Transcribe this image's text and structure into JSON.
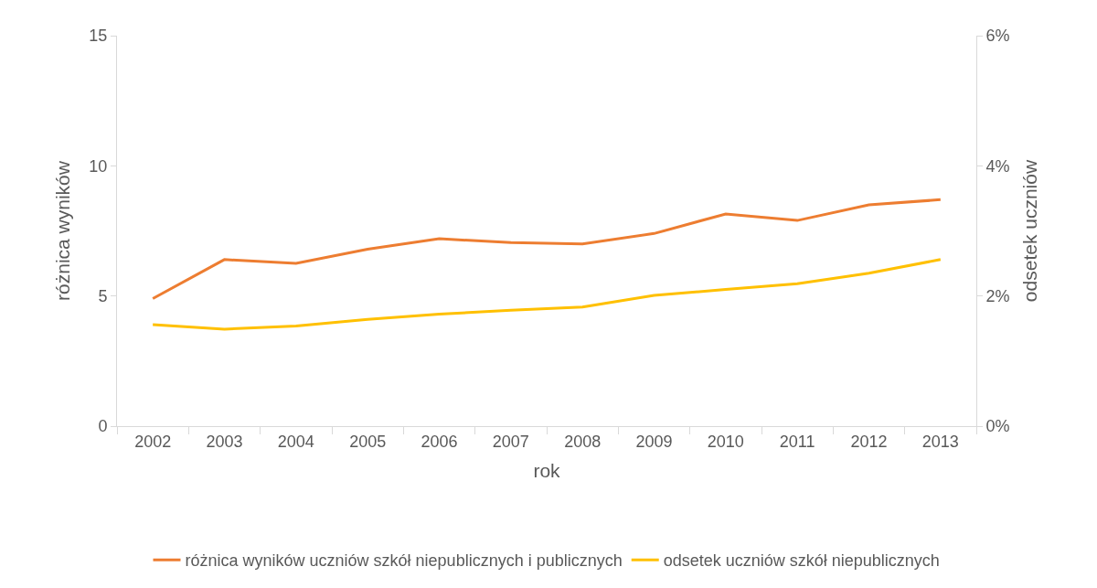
{
  "chart_data": {
    "type": "line",
    "xlabel": "rok",
    "ylabel": "różnica wyników",
    "y2label": "odsetek uczniów",
    "categories": [
      "2002",
      "2003",
      "2004",
      "2005",
      "2006",
      "2007",
      "2008",
      "2009",
      "2010",
      "2011",
      "2012",
      "2013"
    ],
    "series": [
      {
        "name": "różnica wyników uczniów szkół niepublicznych i publicznych",
        "color": "#ed7d31",
        "values": [
          4.9,
          6.4,
          6.25,
          6.8,
          7.2,
          7.05,
          7.0,
          7.4,
          8.15,
          7.9,
          8.5,
          8.7
        ]
      },
      {
        "name": "odsetek uczniów szkół niepublicznych",
        "color": "#ffc000",
        "axis": "y2",
        "values": [
          1.56,
          1.49,
          1.54,
          1.64,
          1.72,
          1.78,
          1.83,
          2.01,
          2.1,
          2.19,
          2.35,
          2.56
        ]
      }
    ],
    "ylim": [
      0,
      15
    ],
    "yticks": [
      0,
      5,
      10,
      15
    ],
    "y2lim": [
      0,
      6
    ],
    "y2ticks": [
      {
        "value": 0,
        "label": "0%"
      },
      {
        "value": 2,
        "label": "2%"
      },
      {
        "value": 4,
        "label": "4%"
      },
      {
        "value": 6,
        "label": "6%"
      }
    ],
    "grid": false,
    "legend": "bottom",
    "marker": "none",
    "line_style": "solid"
  }
}
